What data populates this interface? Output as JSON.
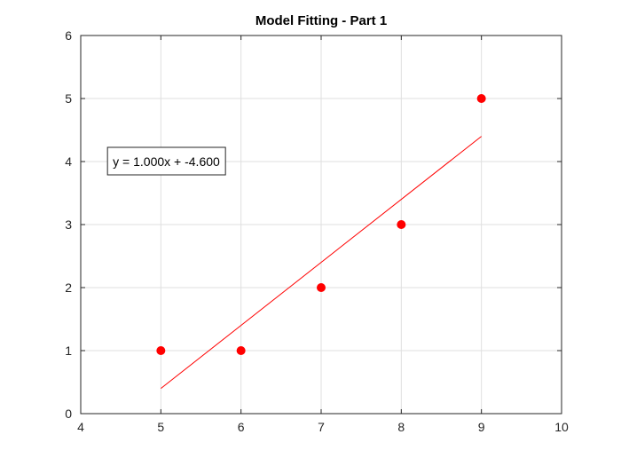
{
  "chart_data": {
    "type": "scatter",
    "title": "Model Fitting - Part 1",
    "xlabel": "",
    "ylabel": "",
    "xlim": [
      4,
      10
    ],
    "ylim": [
      0,
      6
    ],
    "x_ticks": [
      4,
      5,
      6,
      7,
      8,
      9,
      10
    ],
    "y_ticks": [
      0,
      1,
      2,
      3,
      4,
      5,
      6
    ],
    "grid": true,
    "series": [
      {
        "type": "scatter",
        "color": "#ff0000",
        "marker": "circle",
        "x": [
          5,
          6,
          7,
          8,
          9
        ],
        "y": [
          1,
          1,
          2,
          3,
          5
        ]
      },
      {
        "type": "line",
        "color": "#ff0000",
        "x": [
          5,
          9
        ],
        "y": [
          0.4,
          4.4
        ]
      }
    ],
    "annotations": [
      {
        "text": "y = 1.000x + -4.600",
        "x": 4.5,
        "y": 4.0
      }
    ]
  }
}
